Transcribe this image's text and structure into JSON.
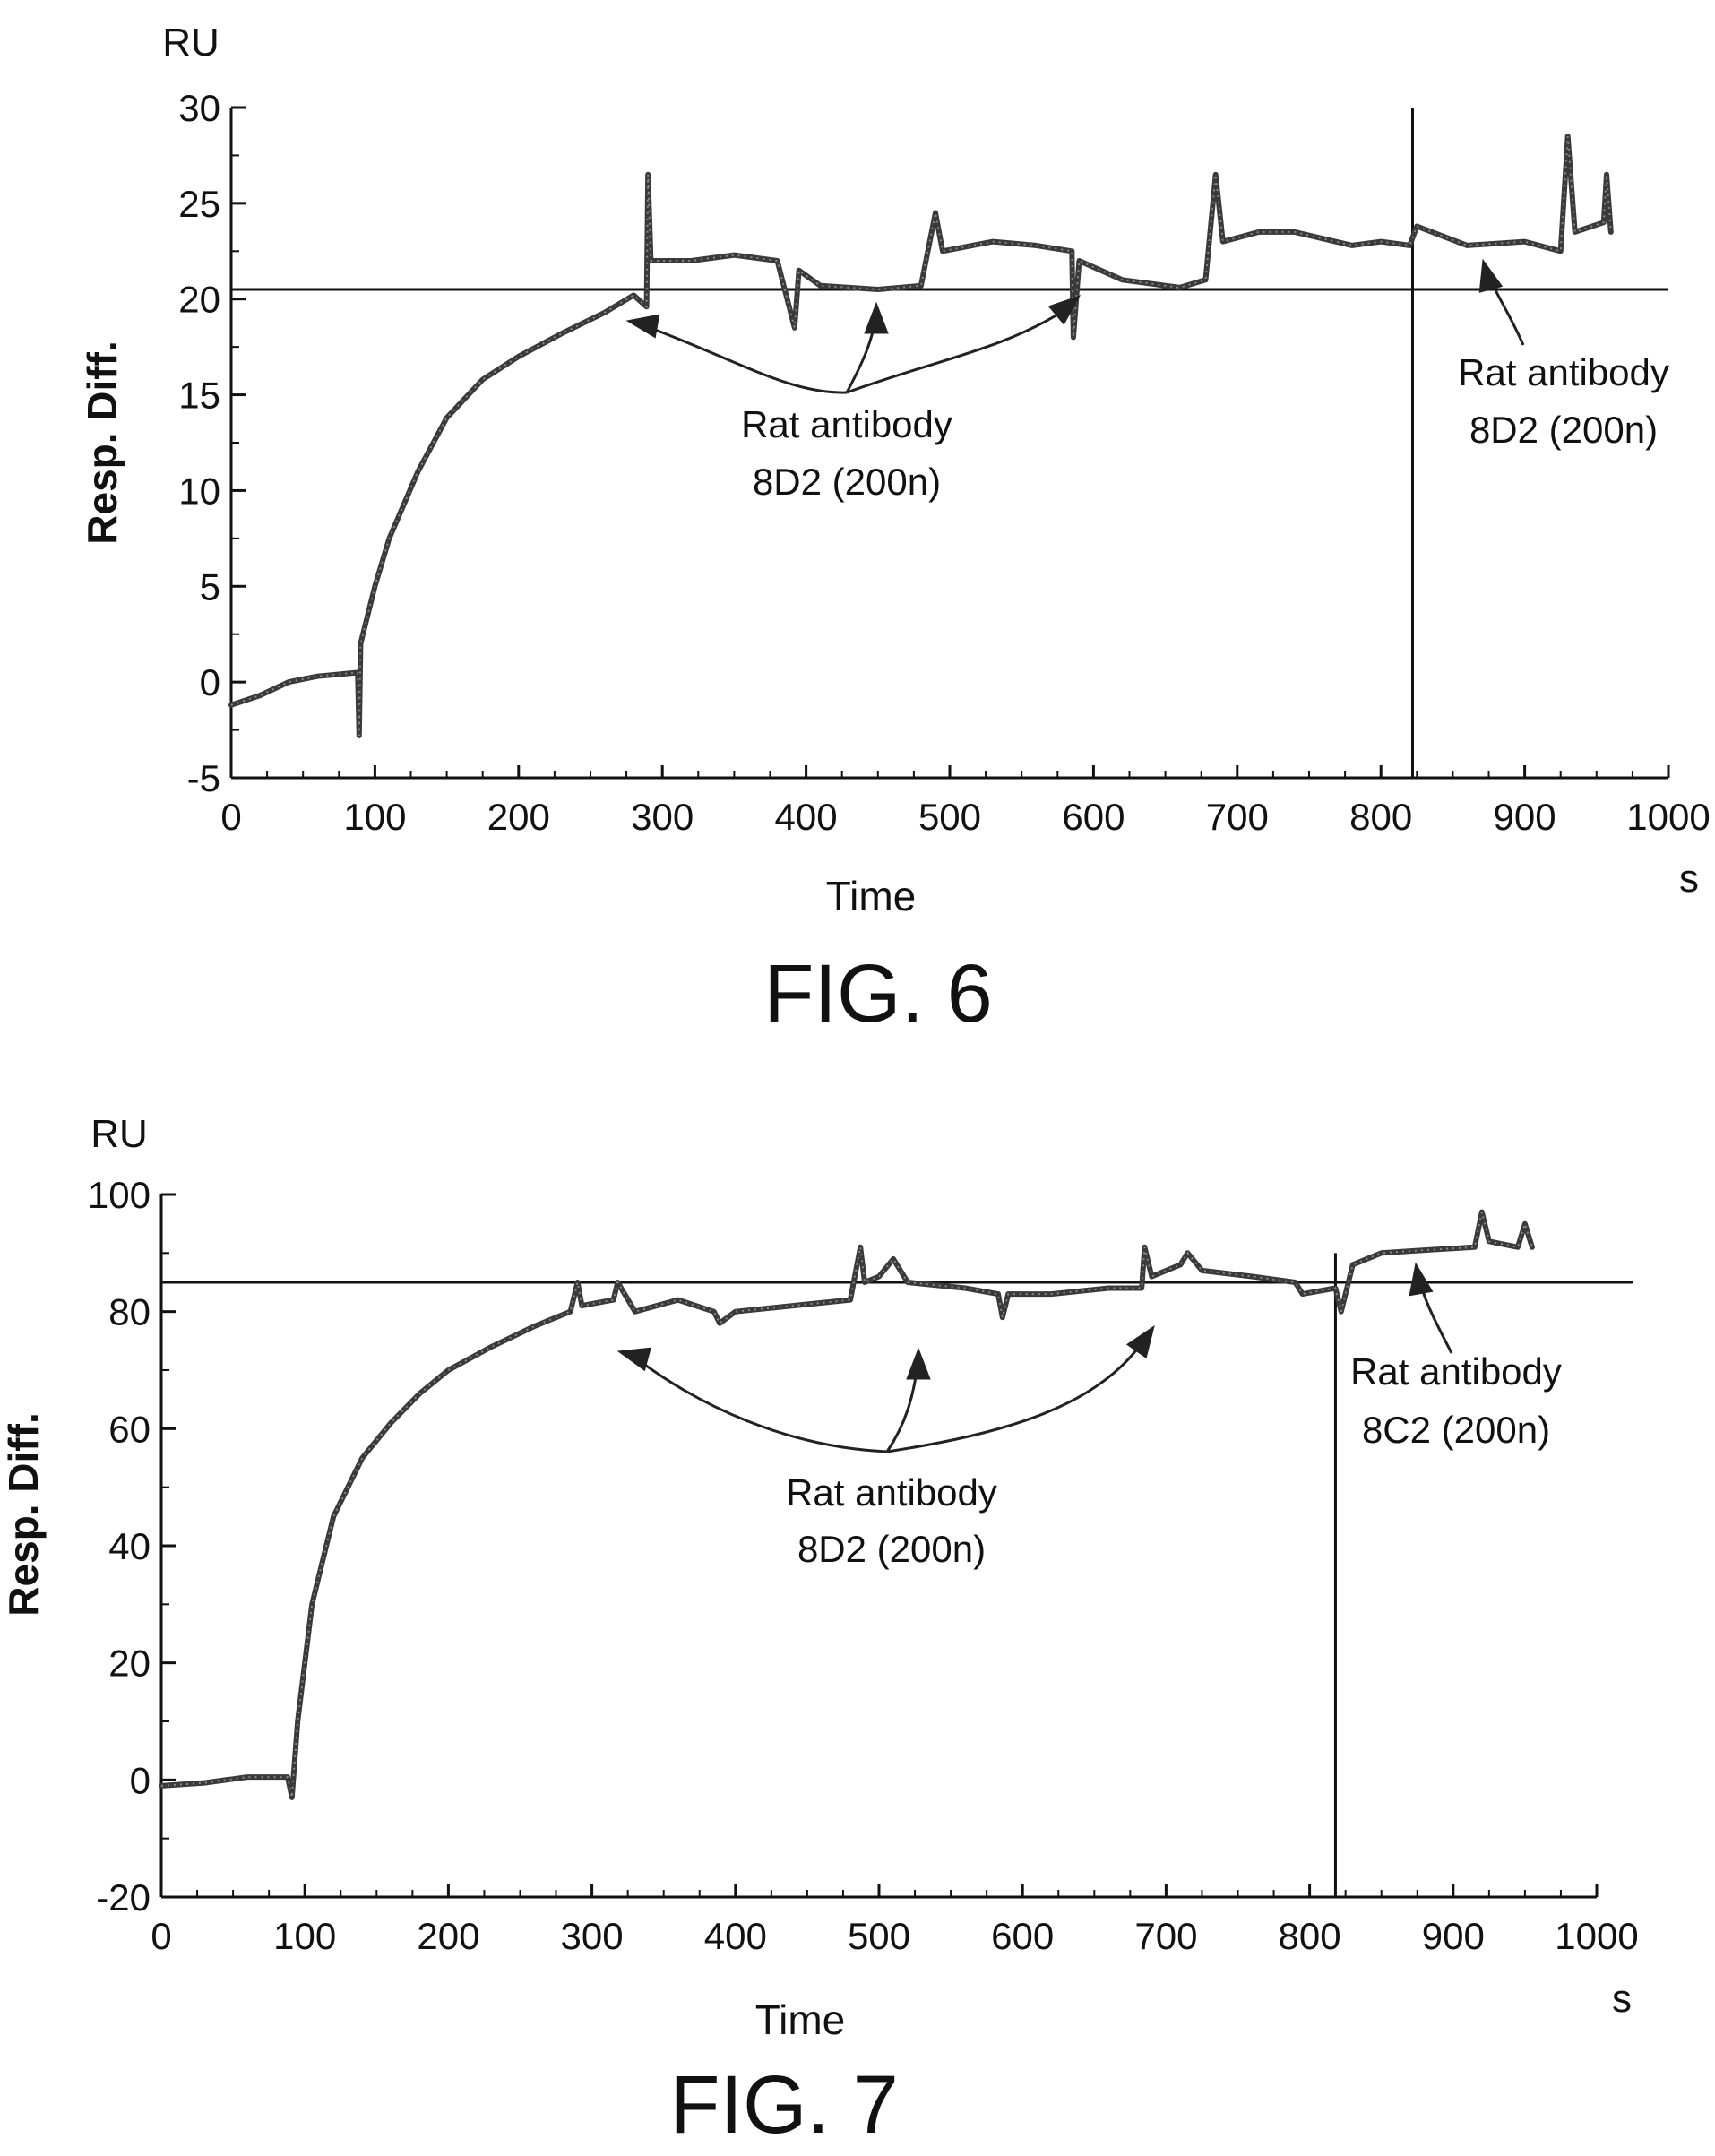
{
  "chart_data": [
    {
      "type": "line",
      "caption": "FIG. 6",
      "unit_label": "RU",
      "xlabel": "Time",
      "xunit": "s",
      "ylabel": "Resp. Diff.",
      "xlim": [
        0,
        1000
      ],
      "ylim": [
        -5,
        30
      ],
      "xticks": [
        "0",
        "100",
        "200",
        "300",
        "400",
        "500",
        "600",
        "700",
        "800",
        "900",
        "1000"
      ],
      "yticks": [
        "-5",
        "0",
        "5",
        "10",
        "15",
        "20",
        "25",
        "30"
      ],
      "reference_line_y": 20.5,
      "vertical_line_x": 822,
      "series": [
        {
          "points": [
            [
              0,
              -1.2
            ],
            [
              20,
              -0.7
            ],
            [
              40,
              0
            ],
            [
              60,
              0.3
            ],
            [
              88,
              0.5
            ],
            [
              89,
              -2.8
            ],
            [
              90,
              2
            ],
            [
              100,
              5
            ],
            [
              110,
              7.5
            ],
            [
              130,
              11
            ],
            [
              150,
              13.8
            ],
            [
              175,
              15.8
            ],
            [
              200,
              17
            ],
            [
              230,
              18.2
            ],
            [
              260,
              19.3
            ],
            [
              280,
              20.2
            ],
            [
              289,
              19.6
            ],
            [
              290,
              26.5
            ],
            [
              292,
              22
            ],
            [
              320,
              22
            ],
            [
              350,
              22.3
            ],
            [
              380,
              22
            ],
            [
              392,
              18.5
            ],
            [
              395,
              21.5
            ],
            [
              410,
              20.7
            ],
            [
              450,
              20.5
            ],
            [
              480,
              20.7
            ],
            [
              490,
              24.5
            ],
            [
              495,
              22.5
            ],
            [
              530,
              23
            ],
            [
              560,
              22.8
            ],
            [
              585,
              22.5
            ],
            [
              586,
              18
            ],
            [
              590,
              22
            ],
            [
              620,
              21
            ],
            [
              660,
              20.6
            ],
            [
              678,
              21
            ],
            [
              685,
              26.5
            ],
            [
              690,
              23
            ],
            [
              715,
              23.5
            ],
            [
              740,
              23.5
            ],
            [
              780,
              22.8
            ],
            [
              800,
              23
            ],
            [
              820,
              22.8
            ],
            [
              825,
              23.8
            ],
            [
              860,
              22.8
            ],
            [
              900,
              23
            ],
            [
              925,
              22.5
            ],
            [
              930,
              28.5
            ],
            [
              935,
              23.5
            ],
            [
              955,
              24
            ],
            [
              957,
              26.5
            ],
            [
              960,
              23.5
            ]
          ]
        }
      ],
      "annotations": [
        {
          "text_lines": [
            "Rat antibody",
            "8D2 (200n)"
          ]
        },
        {
          "text_lines": [
            "Rat antibody",
            "8D2 (200n)"
          ]
        }
      ]
    },
    {
      "type": "line",
      "caption": "FIG. 7",
      "unit_label": "RU",
      "xlabel": "Time",
      "xunit": "s",
      "ylabel": "Resp. Diff.",
      "xlim": [
        0,
        1000
      ],
      "ylim": [
        -20,
        100
      ],
      "xticks": [
        "0",
        "100",
        "200",
        "300",
        "400",
        "500",
        "600",
        "700",
        "800",
        "900",
        "1000"
      ],
      "yticks": [
        "-20",
        "0",
        "20",
        "40",
        "60",
        "80",
        "100"
      ],
      "reference_line_y": 85,
      "vertical_line_x": 818,
      "series": [
        {
          "points": [
            [
              0,
              -1
            ],
            [
              30,
              -0.5
            ],
            [
              60,
              0.5
            ],
            [
              88,
              0.5
            ],
            [
              91,
              -3
            ],
            [
              95,
              10
            ],
            [
              105,
              30
            ],
            [
              120,
              45
            ],
            [
              140,
              55
            ],
            [
              160,
              61
            ],
            [
              180,
              66
            ],
            [
              200,
              70
            ],
            [
              230,
              74
            ],
            [
              260,
              77.5
            ],
            [
              285,
              80
            ],
            [
              290,
              85
            ],
            [
              293,
              81
            ],
            [
              315,
              82
            ],
            [
              318,
              85
            ],
            [
              330,
              80
            ],
            [
              360,
              82
            ],
            [
              385,
              80
            ],
            [
              389,
              78
            ],
            [
              400,
              80
            ],
            [
              440,
              81
            ],
            [
              480,
              82
            ],
            [
              487,
              91
            ],
            [
              490,
              85
            ],
            [
              500,
              86
            ],
            [
              510,
              89
            ],
            [
              520,
              85
            ],
            [
              560,
              84
            ],
            [
              583,
              83
            ],
            [
              586,
              79
            ],
            [
              590,
              83
            ],
            [
              620,
              83
            ],
            [
              660,
              84
            ],
            [
              683,
              84
            ],
            [
              685,
              91
            ],
            [
              690,
              86
            ],
            [
              710,
              88
            ],
            [
              715,
              90
            ],
            [
              725,
              87
            ],
            [
              760,
              86
            ],
            [
              790,
              85
            ],
            [
              795,
              83
            ],
            [
              818,
              84
            ],
            [
              822,
              80
            ],
            [
              830,
              88
            ],
            [
              850,
              90
            ],
            [
              880,
              90.5
            ],
            [
              915,
              91
            ],
            [
              920,
              97
            ],
            [
              925,
              92
            ],
            [
              945,
              91
            ],
            [
              950,
              95
            ],
            [
              955,
              91
            ]
          ]
        }
      ],
      "annotations": [
        {
          "text_lines": [
            "Rat antibody",
            "8D2 (200n)"
          ]
        },
        {
          "text_lines": [
            "Rat antibody",
            "8C2 (200n)"
          ]
        }
      ]
    }
  ]
}
